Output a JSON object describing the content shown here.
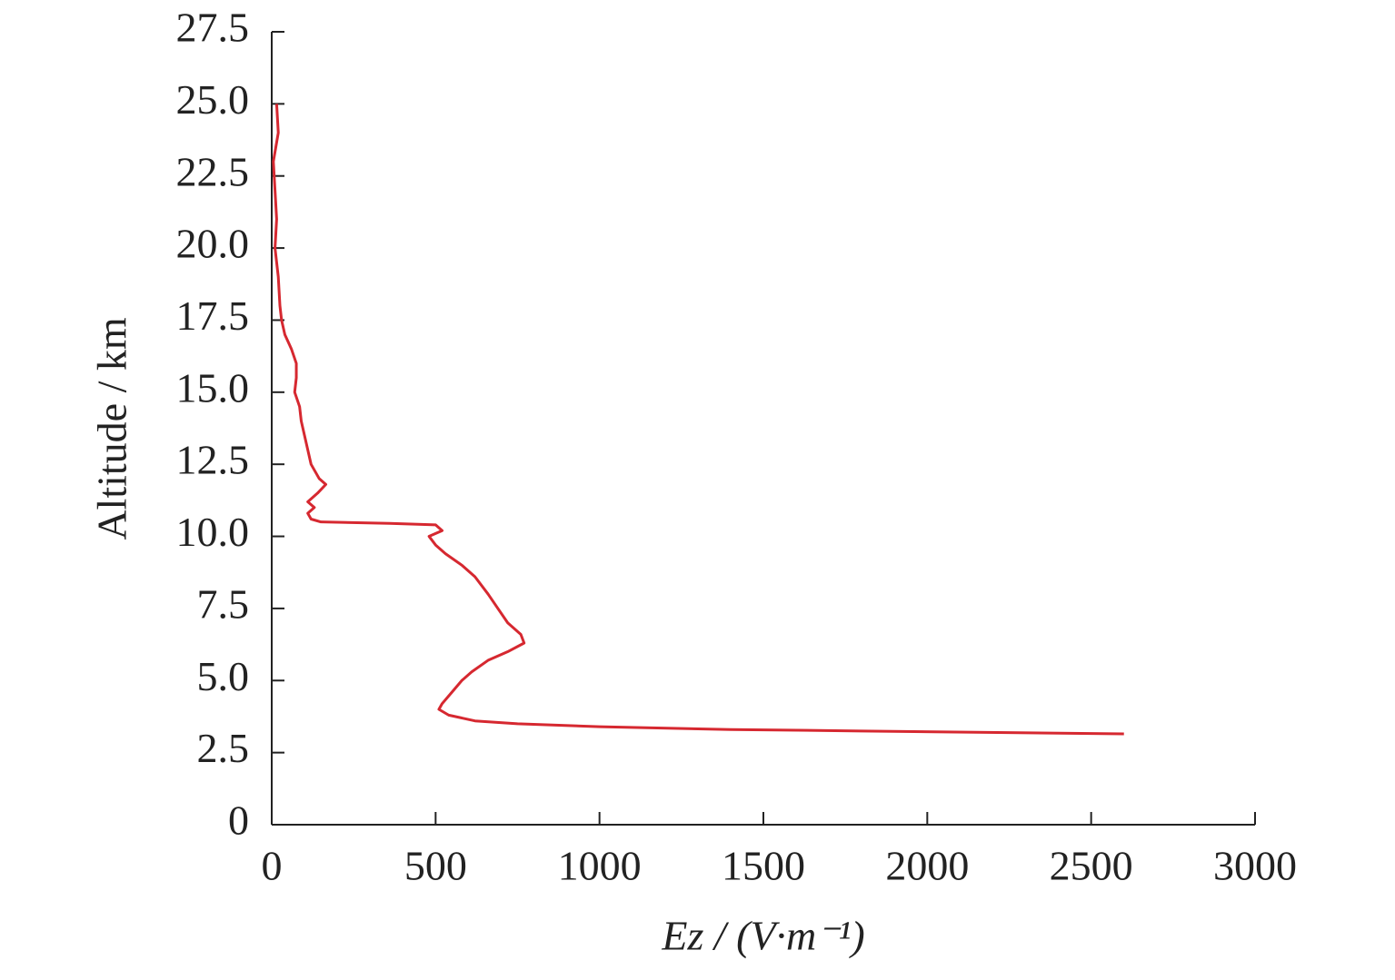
{
  "chart_data": {
    "type": "line",
    "xlabel": "Ez / (V·m⁻¹)",
    "ylabel": "Altitude / km",
    "xlim": [
      0,
      3000
    ],
    "xticks": [
      0,
      500,
      1000,
      1500,
      2000,
      2500,
      3000
    ],
    "ylim": [
      0,
      27.5
    ],
    "yticks": [
      0,
      2.5,
      {
        "value": 5,
        "label": "5.0"
      },
      7.5,
      {
        "value": 10,
        "label": "10.0"
      },
      12.5,
      {
        "value": 15,
        "label": "15.0"
      },
      17.5,
      {
        "value": 20,
        "label": "20.0"
      },
      22.5,
      {
        "value": 25,
        "label": "25.0"
      },
      27.5
    ],
    "series": [
      {
        "color": "#d62830",
        "x": [
          15,
          20,
          5,
          10,
          15,
          10,
          20,
          25,
          30,
          40,
          60,
          75,
          75,
          70,
          85,
          90,
          100,
          110,
          120,
          145,
          165,
          140,
          110,
          130,
          110,
          120,
          150,
          360,
          500,
          520,
          480,
          500,
          530,
          580,
          620,
          660,
          690,
          720,
          760,
          770,
          720,
          660,
          610,
          580,
          550,
          520,
          510,
          540,
          620,
          750,
          1000,
          1400,
          1800,
          2600
        ],
        "values": [
          25,
          24,
          23,
          22,
          21,
          20,
          19,
          18,
          17.5,
          17,
          16.5,
          16,
          15.5,
          15,
          14.5,
          14,
          13.5,
          13,
          12.5,
          12,
          11.8,
          11.5,
          11.2,
          11,
          10.8,
          10.6,
          10.5,
          10.45,
          10.4,
          10.2,
          10,
          9.7,
          9.4,
          9,
          8.6,
          8,
          7.5,
          7,
          6.6,
          6.3,
          6,
          5.7,
          5.3,
          5,
          4.6,
          4.2,
          4,
          3.8,
          3.6,
          3.5,
          3.4,
          3.3,
          3.25,
          3.15
        ]
      }
    ]
  }
}
